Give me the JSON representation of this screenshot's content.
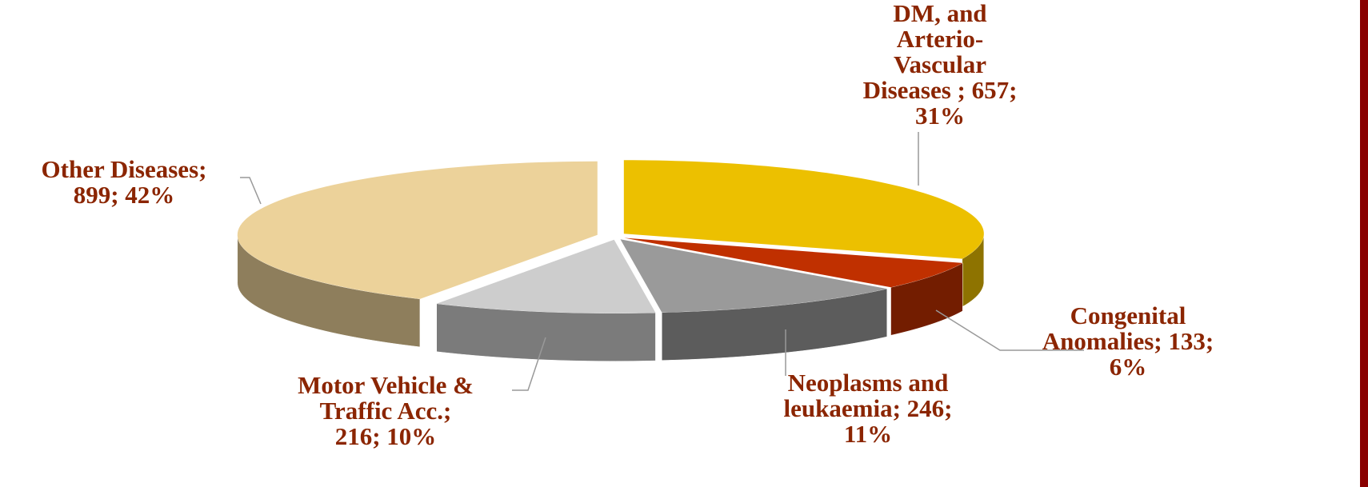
{
  "chart_data": {
    "type": "pie3d",
    "values": [
      657,
      133,
      246,
      216,
      899
    ],
    "value_labels": [
      [
        "DM, and",
        "Arterio-",
        "Vascular",
        "Diseases ; 657;",
        "31%"
      ],
      [
        "Congenital",
        "Anomalies; 133;",
        "6%"
      ],
      [
        "Neoplasms and",
        "leukaemia; 246;",
        "11%"
      ],
      [
        "Motor Vehicle &",
        "Traffic Acc.;",
        "216; 10%"
      ],
      [
        "Other Diseases;",
        "899; 42%"
      ]
    ],
    "colors": [
      "#ecc000",
      "#c03000",
      "#9a9a9a",
      "#cdcdcd",
      "#ecd29a"
    ]
  }
}
